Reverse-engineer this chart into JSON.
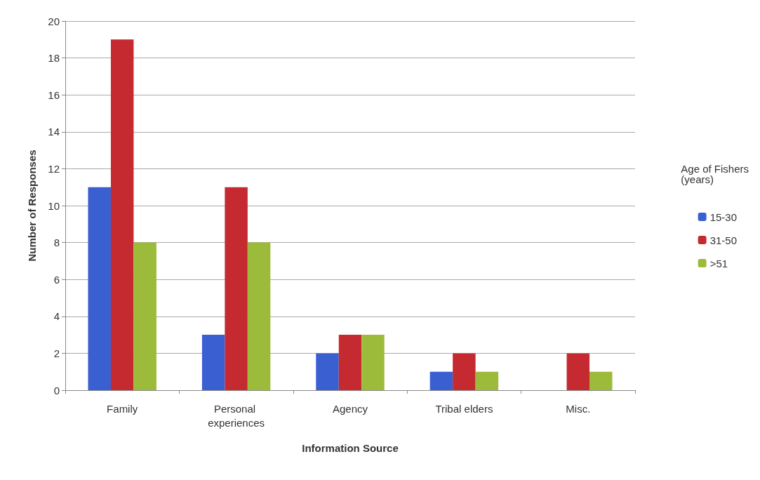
{
  "chart_data": {
    "type": "bar",
    "xlabel": "Information Source",
    "ylabel": "Number of Responses",
    "legend_title": "Age of Fishers\n(years)",
    "categories": [
      "Family",
      "Personal experiences",
      "Agency",
      "Tribal elders",
      "Misc."
    ],
    "series": [
      {
        "name": "15-30",
        "color": "#3a5fd0",
        "values": [
          11,
          3,
          2,
          1,
          0
        ]
      },
      {
        "name": "31-50",
        "color": "#c42a2f",
        "values": [
          19,
          11,
          3,
          2,
          2
        ]
      },
      {
        "name": ">51",
        "color": "#9dbb3b",
        "values": [
          8,
          8,
          3,
          1,
          1
        ]
      }
    ],
    "ylim": [
      0,
      20
    ],
    "yticks": [
      0,
      2,
      4,
      6,
      8,
      10,
      12,
      14,
      16,
      18,
      20
    ],
    "grid": "y",
    "legend": "right"
  }
}
